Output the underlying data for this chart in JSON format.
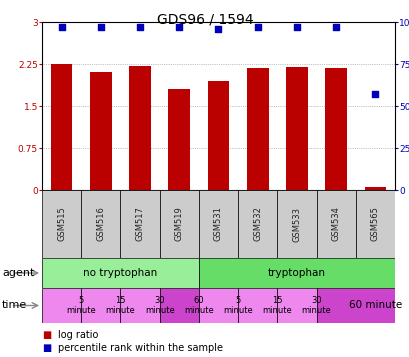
{
  "title": "GDS96 / 1594",
  "samples": [
    "GSM515",
    "GSM516",
    "GSM517",
    "GSM519",
    "GSM531",
    "GSM532",
    "GSM533",
    "GSM534",
    "GSM565"
  ],
  "log_ratio": [
    2.25,
    2.1,
    2.22,
    1.8,
    1.95,
    2.18,
    2.2,
    2.18,
    0.05
  ],
  "percentile_rank": [
    97,
    97,
    97,
    97,
    96,
    97,
    97,
    97,
    57
  ],
  "log_ratio_max": 3.0,
  "log_ratio_yticks": [
    0,
    0.75,
    1.5,
    2.25,
    3
  ],
  "percentile_yticks": [
    0,
    25,
    50,
    75,
    100
  ],
  "bar_color": "#bb0000",
  "dot_color": "#0000bb",
  "sample_box_color": "#cccccc",
  "agent_no_tryp_color": "#99ee99",
  "agent_tryp_color": "#66dd66",
  "time_light_color": "#ee88ee",
  "time_dark_color": "#cc44cc",
  "grid_color": "#888888",
  "title_fontsize": 10,
  "tick_fontsize": 6.5,
  "legend_fontsize": 7,
  "sample_fontsize": 6,
  "agent_fontsize": 7.5,
  "time_fontsize": 6
}
